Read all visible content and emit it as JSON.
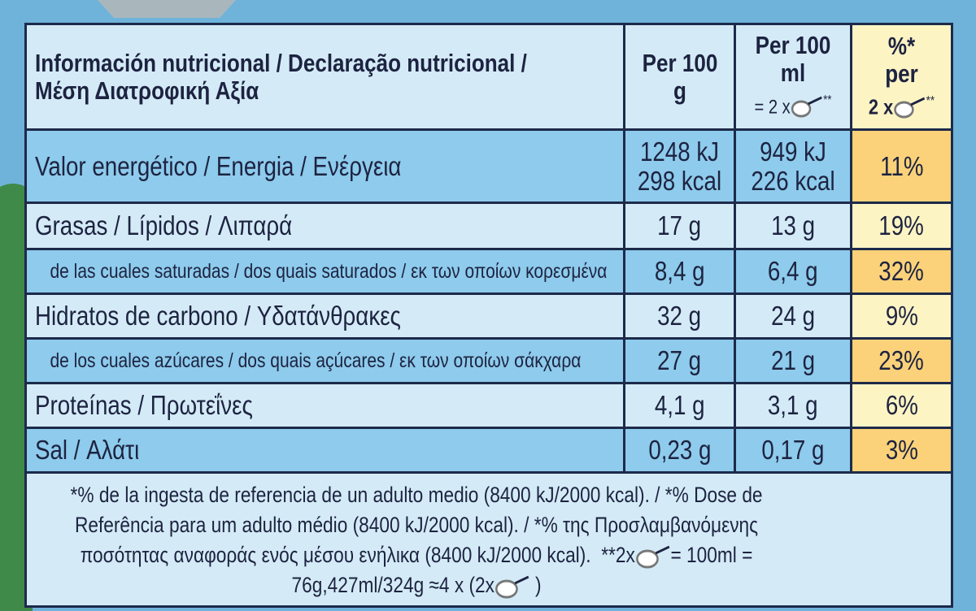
{
  "header": {
    "title": "Información nutricional / Declaração nutricional / Μέση Διατροφική Αξία",
    "col1": "Per 100 g",
    "col2": {
      "line1": "Per 100 ml",
      "prefix": "= 2 x",
      "suffix": "**"
    },
    "col3": {
      "line1": "%*",
      "line2": "per",
      "prefix": "2 x",
      "suffix": "**"
    }
  },
  "rows": [
    {
      "label": "Valor energético / Energia / Ενέργεια",
      "per100g": [
        "1248 kJ",
        "298 kcal"
      ],
      "per100ml": [
        "949 kJ",
        "226 kcal"
      ],
      "ri": "11%"
    },
    {
      "label": "Grasas / Lípidos / Λιπαρά",
      "per100g": "17 g",
      "per100ml": "13 g",
      "ri": "19%"
    },
    {
      "label": "de las cuales saturadas / dos quais saturados / εκ των οποίων κορεσμένα",
      "per100g": "8,4 g",
      "per100ml": "6,4 g",
      "ri": "32%"
    },
    {
      "label": "Hidratos de carbono / Υδατάνθρακες",
      "per100g": "32 g",
      "per100ml": "24 g",
      "ri": "9%"
    },
    {
      "label": "de los cuales azúcares / dos quais açúcares / εκ των οποίων σάκχαρα",
      "per100g": "27 g",
      "per100ml": "21 g",
      "ri": "23%"
    },
    {
      "label": "Proteínas / Πρωτεΐνες",
      "per100g": "4,1 g",
      "per100ml": "3,1 g",
      "ri": "6%"
    },
    {
      "label": "Sal / Αλάτι",
      "per100g": "0,23 g",
      "per100ml": "0,17 g",
      "ri": "3%"
    }
  ],
  "footnote": {
    "text": "*% de la ingesta de referencia de un adulto medio (8400 kJ/2000 kcal). / *% Dose de Referência para um adulto médio (8400 kJ/2000 kcal). / *% της Προσλαμβανόμενης ποσότητας αναφοράς ενός μέσου ενήλικα (8400 kJ/2000 kcal).",
    "serving": "**2x",
    "equals": "= 100ml = 76g,427ml/324g ≈4 x (2x",
    "close": ")"
  }
}
